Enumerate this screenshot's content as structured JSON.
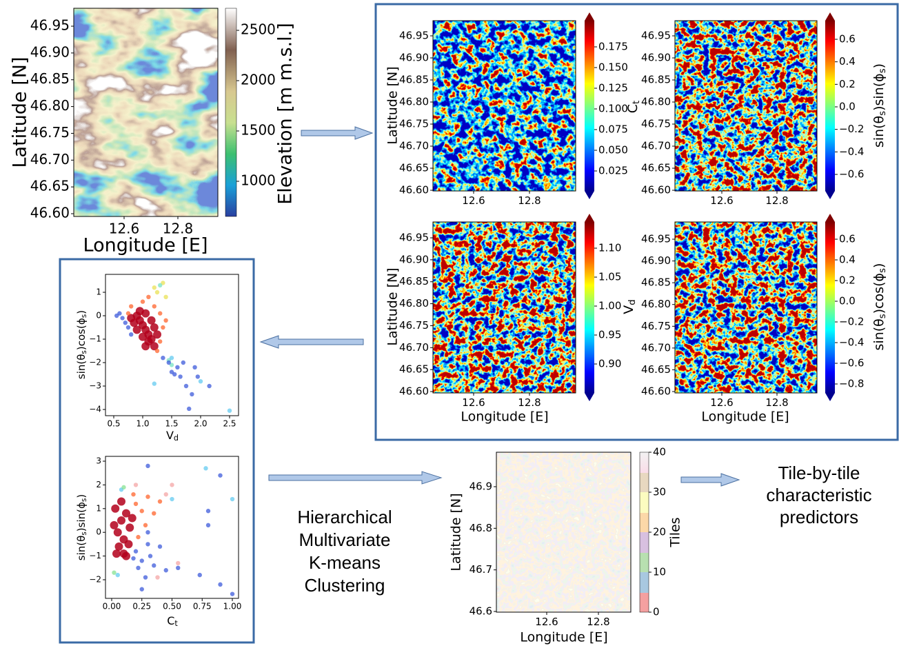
{
  "elevation_map": {
    "ylabel": "Latitude [N]",
    "xlabel": "Longitude [E]",
    "yticks": [
      "46.95",
      "46.90",
      "46.85",
      "46.80",
      "46.75",
      "46.70",
      "46.65",
      "46.60"
    ],
    "xticks": [
      "12.6",
      "12.8"
    ],
    "colorbar_label": "Elevation [m m.s.l.]",
    "colorbar_ticks": [
      "2500",
      "2000",
      "1500",
      "1000"
    ]
  },
  "feature_maps": [
    {
      "ylabel": "Latitude [N]",
      "yticks": [
        "46.95",
        "46.90",
        "46.85",
        "46.80",
        "46.75",
        "46.70",
        "46.65",
        "46.60"
      ],
      "xticks": [
        "12.6",
        "12.8"
      ],
      "colorbar_label": [
        "C",
        "t"
      ],
      "colorbar_ticks": [
        "0.175",
        "0.150",
        "0.125",
        "0.100",
        "0.075",
        "0.050",
        "0.025"
      ]
    },
    {
      "yticks": [
        "46.95",
        "46.90",
        "46.85",
        "46.80",
        "46.75",
        "46.70",
        "46.65",
        "46.60"
      ],
      "xticks": [
        "12.6",
        "12.8"
      ],
      "colorbar_label": [
        "sin(θ",
        "s",
        ")sin(ϕ",
        "s",
        ")"
      ],
      "colorbar_ticks": [
        "0.6",
        "0.4",
        "0.2",
        "0.0",
        "−0.2",
        "−0.4",
        "−0.6"
      ]
    },
    {
      "ylabel": "Latitude [N]",
      "xlabel": "Longitude [E]",
      "yticks": [
        "46.95",
        "46.90",
        "46.85",
        "46.80",
        "46.75",
        "46.70",
        "46.65",
        "46.60"
      ],
      "xticks": [
        "12.6",
        "12.8"
      ],
      "colorbar_label": [
        "V",
        "d"
      ],
      "colorbar_ticks": [
        "1.10",
        "1.05",
        "1.00",
        "0.95",
        "0.90"
      ]
    },
    {
      "xlabel": "Longitude [E]",
      "yticks": [
        "46.95",
        "46.90",
        "46.85",
        "46.80",
        "46.75",
        "46.70",
        "46.65",
        "46.60"
      ],
      "xticks": [
        "12.6",
        "12.8"
      ],
      "colorbar_label": [
        "sin(θ",
        "s",
        ")cos(ϕ",
        "s",
        ")"
      ],
      "colorbar_ticks": [
        "0.6",
        "0.4",
        "0.2",
        "0.0",
        "−0.2",
        "−0.4",
        "−0.6",
        "−0.8"
      ]
    }
  ],
  "scatter_plots": [
    {
      "xlabel": [
        "V",
        "d"
      ],
      "ylabel": [
        "sin(θ",
        "s",
        ")cos(ϕ",
        "s",
        ")"
      ],
      "xticks": [
        0.5,
        {
          "value": 1,
          "label": "1.0"
        },
        1.5,
        {
          "value": 2,
          "label": "2.0"
        },
        2.5
      ],
      "yticks": [
        1,
        0,
        {
          "value": -1,
          "label": "−1"
        },
        {
          "value": -2,
          "label": "−2"
        },
        {
          "value": -3,
          "label": "−3"
        },
        {
          "value": -4,
          "label": "−4"
        }
      ],
      "groups": [
        {
          "color": "#b3001b",
          "points": [
            [
              0.9,
              0
            ],
            [
              0.95,
              -0.2
            ],
            [
              1.0,
              -0.4
            ],
            [
              1.05,
              -0.6
            ],
            [
              1.1,
              -0.8
            ],
            [
              0.85,
              -0.3
            ],
            [
              0.95,
              0.2
            ],
            [
              1.05,
              0.1
            ],
            [
              1.15,
              -0.2
            ],
            [
              1.0,
              -0.9
            ],
            [
              1.1,
              -1.1
            ],
            [
              0.9,
              -0.6
            ],
            [
              1.2,
              -0.5
            ],
            [
              1.15,
              -1.0
            ],
            [
              1.05,
              -1.3
            ],
            [
              0.8,
              -0.1
            ],
            [
              1.2,
              -1.3
            ],
            [
              1.25,
              -0.8
            ]
          ]
        },
        {
          "color": "#ff5a1e",
          "points": [
            [
              0.8,
              0.4
            ],
            [
              1.0,
              0.6
            ],
            [
              1.2,
              0.4
            ],
            [
              1.3,
              0.1
            ],
            [
              1.35,
              -0.5
            ],
            [
              1.3,
              -1.1
            ],
            [
              1.25,
              -1.5
            ],
            [
              0.75,
              0.1
            ],
            [
              1.1,
              0.8
            ],
            [
              1.4,
              -0.2
            ]
          ]
        },
        {
          "color": "#e8e04a",
          "points": [
            [
              1.2,
              1.2
            ],
            [
              1.35,
              1.4
            ],
            [
              1.25,
              1.0
            ],
            [
              1.4,
              0.8
            ]
          ]
        },
        {
          "color": "#6ee0c0",
          "points": [
            [
              1.3,
              1.3
            ],
            [
              1.45,
              -1.9
            ],
            [
              1.5,
              -2.1
            ]
          ]
        },
        {
          "color": "#3050d8",
          "points": [
            [
              0.6,
              0.1
            ],
            [
              0.65,
              -0.1
            ],
            [
              0.7,
              -0.3
            ],
            [
              0.55,
              0.0
            ],
            [
              0.75,
              -0.5
            ],
            [
              0.8,
              -0.8
            ],
            [
              1.35,
              -1.8
            ],
            [
              1.45,
              -2.0
            ],
            [
              1.6,
              -2.2
            ],
            [
              1.55,
              -2.5
            ],
            [
              1.7,
              -2.0
            ],
            [
              1.9,
              -2.2
            ],
            [
              1.95,
              -2.6
            ],
            [
              1.75,
              -3.0
            ],
            [
              1.85,
              -3.35
            ],
            [
              2.15,
              -3.0
            ],
            [
              1.8,
              -3.97
            ],
            [
              1.5,
              -2.4
            ],
            [
              1.65,
              -2.6
            ]
          ]
        },
        {
          "color": "#5ac8f0",
          "points": [
            [
              2.5,
              -4.05
            ],
            [
              1.2,
              -2.9
            ],
            [
              2.0,
              -2.8
            ],
            [
              1.5,
              -1.8
            ]
          ]
        }
      ]
    },
    {
      "xlabel": [
        "C",
        "t"
      ],
      "ylabel": [
        "sin(θ",
        "s",
        ")sin(ϕ",
        "s",
        ")"
      ],
      "xticks": [
        {
          "value": 0,
          "label": "0.00"
        },
        0.25,
        {
          "value": 0.5,
          "label": "0.50"
        },
        0.75,
        {
          "value": 1,
          "label": "1.00"
        }
      ],
      "yticks": [
        3,
        2,
        1,
        0,
        {
          "value": -1,
          "label": "−1"
        },
        {
          "value": -2,
          "label": "−2"
        }
      ],
      "groups": [
        {
          "color": "#b3001b",
          "points": [
            [
              0.05,
              0
            ],
            [
              0.08,
              0.5
            ],
            [
              0.1,
              -0.3
            ],
            [
              0.03,
              1.0
            ],
            [
              0.12,
              0.8
            ],
            [
              0.06,
              -0.6
            ],
            [
              0.1,
              -0.9
            ],
            [
              0.15,
              0.2
            ],
            [
              0.02,
              0.3
            ],
            [
              0.14,
              -0.5
            ],
            [
              0.08,
              1.3
            ],
            [
              0.12,
              -1.0
            ],
            [
              0.04,
              -0.9
            ],
            [
              0.17,
              0.6
            ]
          ]
        },
        {
          "color": "#ff5a1e",
          "points": [
            [
              0.2,
              1.2
            ],
            [
              0.25,
              0.9
            ],
            [
              0.22,
              -0.2
            ],
            [
              0.3,
              1.5
            ],
            [
              0.18,
              1.6
            ],
            [
              0.35,
              0.8
            ],
            [
              0.4,
              1.3
            ],
            [
              0.28,
              0.3
            ]
          ]
        },
        {
          "color": "#f4a0a0",
          "points": [
            [
              0.45,
              1.6
            ],
            [
              0.5,
              2.0
            ],
            [
              0.38,
              -1.9
            ],
            [
              0.55,
              -1.3
            ],
            [
              0.2,
              2.0
            ]
          ]
        },
        {
          "color": "#3050d8",
          "points": [
            [
              0.2,
              -0.8
            ],
            [
              0.25,
              -1.2
            ],
            [
              0.3,
              -0.5
            ],
            [
              0.22,
              -1.5
            ],
            [
              0.32,
              -1.0
            ],
            [
              0.28,
              -1.9
            ],
            [
              0.35,
              -1.4
            ],
            [
              0.18,
              -1.1
            ],
            [
              0.3,
              0.0
            ],
            [
              0.4,
              -0.6
            ],
            [
              0.45,
              -1.6
            ],
            [
              0.73,
              -1.8
            ],
            [
              0.9,
              -2.2
            ],
            [
              1.0,
              -2.6
            ],
            [
              0.8,
              0.3
            ],
            [
              0.8,
              0.9
            ],
            [
              0.9,
              2.4
            ],
            [
              0.3,
              2.8
            ],
            [
              0.55,
              -1.5
            ],
            [
              0.25,
              -2.4
            ]
          ]
        },
        {
          "color": "#5ac8f0",
          "points": [
            [
              1.0,
              1.4
            ],
            [
              0.78,
              2.7
            ],
            [
              0.5,
              1.4
            ],
            [
              0.05,
              -1.8
            ],
            [
              0.08,
              1.8
            ]
          ]
        },
        {
          "color": "#7fe08a",
          "points": [
            [
              0.02,
              -1.7
            ],
            [
              0.1,
              1.9
            ]
          ]
        }
      ]
    }
  ],
  "tiles_map": {
    "ylabel": "Latitude [N]",
    "xlabel": "Longitude [E]",
    "yticks": [
      "46.9",
      "46.8",
      "46.7",
      "46.6"
    ],
    "xticks": [
      "12.6",
      "12.8"
    ],
    "colorbar_label": "Tiles",
    "colorbar_ticks": [
      "40",
      "30",
      "20",
      "10",
      "0"
    ]
  },
  "clustering_label": [
    "Hierarchical",
    "Multivariate",
    "K-means",
    "Clustering"
  ],
  "output_label": [
    "Tile-by-tile",
    "characteristic",
    "predictors"
  ]
}
